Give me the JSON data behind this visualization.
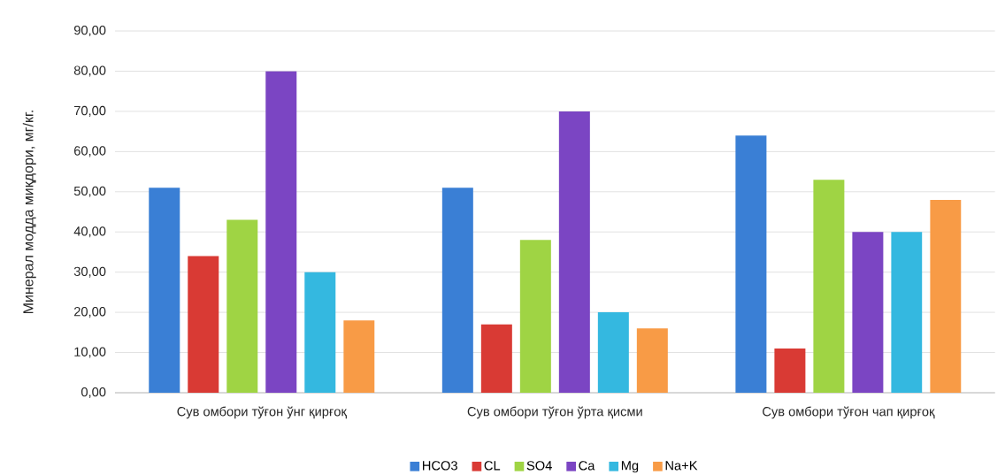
{
  "chart_data": {
    "type": "bar",
    "ylabel": "Минерал модда миқдори,  мг/кг.",
    "categories": [
      "Сув омбори тўғон ўнг қирғоқ",
      "Сув омбори тўғон ўрта қисми",
      "Сув омбори тўғон чап қирғоқ"
    ],
    "series": [
      {
        "name": "HCO3",
        "color": "#3a7fd5",
        "values": [
          51,
          51,
          64
        ]
      },
      {
        "name": "CL",
        "color": "#d93a34",
        "values": [
          34,
          17,
          11
        ]
      },
      {
        "name": "SO4",
        "color": "#9fd444",
        "values": [
          43,
          38,
          53
        ]
      },
      {
        "name": "Ca",
        "color": "#7b45c3",
        "values": [
          80,
          70,
          40
        ]
      },
      {
        "name": "Mg",
        "color": "#34b8e0",
        "values": [
          30,
          20,
          40
        ]
      },
      {
        "name": "Na+K",
        "color": "#f89b46",
        "values": [
          18,
          16,
          48
        ]
      }
    ],
    "ylim": [
      0,
      90
    ],
    "yticks": [
      {
        "value": 0,
        "label": "0,00"
      },
      {
        "value": 10,
        "label": "10,00"
      },
      {
        "value": 20,
        "label": "20,00"
      },
      {
        "value": 30,
        "label": "30,00"
      },
      {
        "value": 40,
        "label": "40,00"
      },
      {
        "value": 50,
        "label": "50,00"
      },
      {
        "value": 60,
        "label": "60,00"
      },
      {
        "value": 70,
        "label": "70,00"
      },
      {
        "value": 80,
        "label": "80,00"
      },
      {
        "value": 90,
        "label": "90,00"
      }
    ],
    "grid": "y",
    "legend": "bottom"
  }
}
